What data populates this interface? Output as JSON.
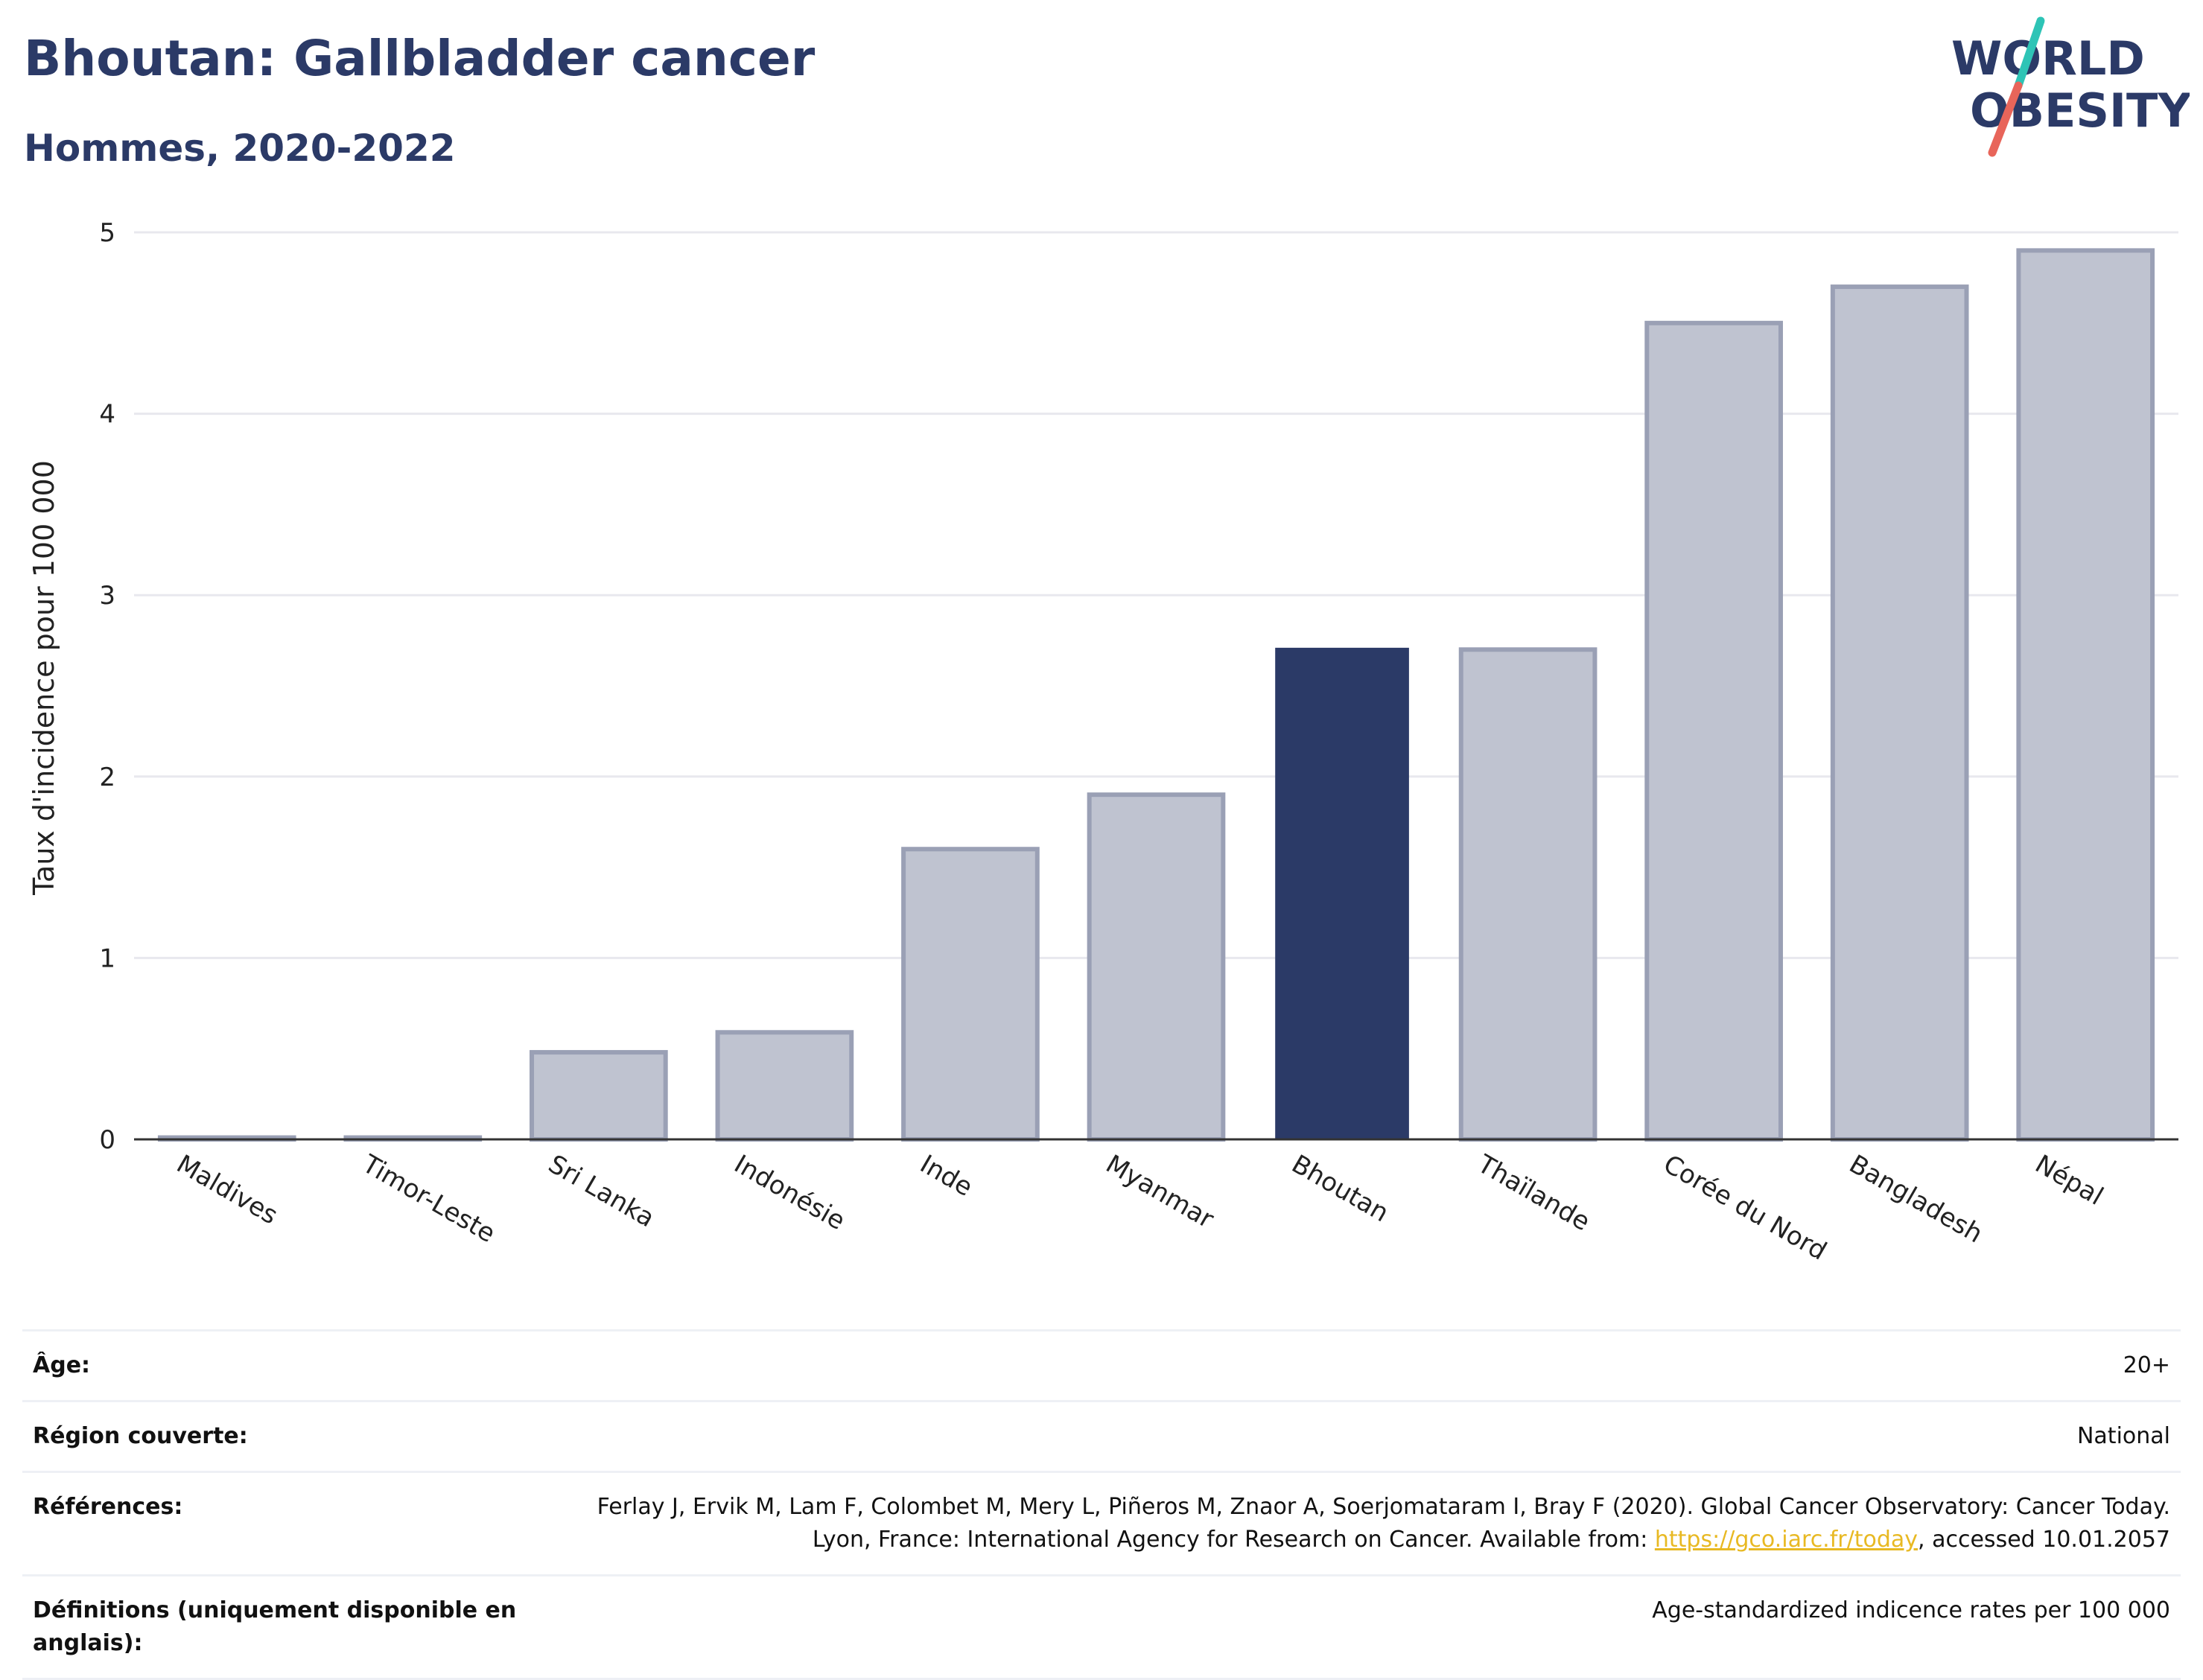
{
  "header": {
    "title": "Bhoutan: Gallbladder cancer",
    "subtitle": "Hommes, 2020-2022"
  },
  "logo": {
    "line1": "WORLD",
    "line2": "OBESITY",
    "colors": {
      "text": "#2b3a67",
      "slash_teal": "#2ec4b6",
      "slash_red": "#e8655a"
    }
  },
  "colors": {
    "highlight_bar": "#2b3a67",
    "other_bar_fill": "#bfc3d0",
    "other_bar_stroke": "#9aa0b5",
    "grid": "#e8e8ee",
    "link": "#e8b923"
  },
  "chart_data": {
    "type": "bar",
    "categories": [
      "Maldives",
      "Timor-Leste",
      "Sri Lanka",
      "Indonésie",
      "Inde",
      "Myanmar",
      "Bhoutan",
      "Thaïlande",
      "Corée du Nord",
      "Bangladesh",
      "Népal"
    ],
    "values": [
      0.01,
      0.01,
      0.48,
      0.59,
      1.6,
      1.9,
      2.71,
      2.7,
      4.5,
      4.7,
      4.9
    ],
    "highlight": "Bhoutan",
    "ylabel": "Taux d'incidence pour 100 000",
    "ylim": [
      0,
      5
    ],
    "yticks": [
      0,
      1,
      2,
      3,
      4,
      5
    ],
    "grid": true
  },
  "meta": {
    "age_label": "Âge:",
    "age_value": "20+",
    "region_label": "Région couverte:",
    "region_value": "National",
    "refs_label": "Références:",
    "refs_text_1": "Ferlay J, Ervik M, Lam F, Colombet M, Mery L, Piñeros M, Znaor A, Soerjomataram I, Bray F (2020). Global Cancer Observatory: Cancer Today. Lyon, France: International Agency for Research on Cancer. Available from: ",
    "refs_link": "https://gco.iarc.fr/today",
    "refs_text_2": ", accessed 10.01.2057",
    "defs_label": "Définitions (uniquement disponible en anglais):",
    "defs_value": "Age-standardized indicence rates per 100 000"
  }
}
